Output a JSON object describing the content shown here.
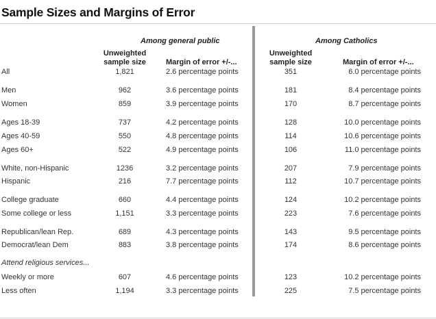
{
  "title": "Sample Sizes and Margins of Error",
  "groups": {
    "general": "Among general public",
    "catholics": "Among Catholics"
  },
  "columns": {
    "sample_size_line1": "Unweighted",
    "sample_size_line2": "sample size",
    "margin": "Margin of error +/-..."
  },
  "section_label": "Attend religious services...",
  "rows": [
    {
      "label": "All",
      "gen_n": "1,821",
      "gen_moe": "2.6 percentage points",
      "cath_n": "351",
      "cath_moe": "6.0 percentage points"
    },
    {
      "label": "Men",
      "gen_n": "962",
      "gen_moe": "3.6 percentage points",
      "cath_n": "181",
      "cath_moe": "8.4 percentage points"
    },
    {
      "label": "Women",
      "gen_n": "859",
      "gen_moe": "3.9 percentage points",
      "cath_n": "170",
      "cath_moe": "8.7 percentage points"
    },
    {
      "label": "Ages 18-39",
      "gen_n": "737",
      "gen_moe": "4.2 percentage points",
      "cath_n": "128",
      "cath_moe": "10.0 percentage points"
    },
    {
      "label": "Ages 40-59",
      "gen_n": "550",
      "gen_moe": "4.8 percentage points",
      "cath_n": "114",
      "cath_moe": "10.6 percentage points"
    },
    {
      "label": "Ages 60+",
      "gen_n": "522",
      "gen_moe": "4.9 percentage points",
      "cath_n": "106",
      "cath_moe": "11.0 percentage points"
    },
    {
      "label": "White, non-Hispanic",
      "gen_n": "1236",
      "gen_moe": "3.2 percentage points",
      "cath_n": "207",
      "cath_moe": "7.9 percentage points"
    },
    {
      "label": "Hispanic",
      "gen_n": "216",
      "gen_moe": "7.7 percentage points",
      "cath_n": "112",
      "cath_moe": "10.7 percentage points"
    },
    {
      "label": "College graduate",
      "gen_n": "660",
      "gen_moe": "4.4 percentage points",
      "cath_n": "124",
      "cath_moe": "10.2 percentage points"
    },
    {
      "label": "Some college or less",
      "gen_n": "1,151",
      "gen_moe": "3.3 percentage points",
      "cath_n": "223",
      "cath_moe": "7.6 percentage points"
    },
    {
      "label": "Republican/lean Rep.",
      "gen_n": "689",
      "gen_moe": "4.3 percentage points",
      "cath_n": "143",
      "cath_moe": "9.5 percentage points"
    },
    {
      "label": "Democrat/lean Dem",
      "gen_n": "883",
      "gen_moe": "3.8 percentage points",
      "cath_n": "174",
      "cath_moe": "8.6 percentage points"
    },
    {
      "label": "Weekly or more",
      "gen_n": "607",
      "gen_moe": "4.6 percentage points",
      "cath_n": "123",
      "cath_moe": "10.2 percentage points"
    },
    {
      "label": "Less often",
      "gen_n": "1,194",
      "gen_moe": "3.3 percentage points",
      "cath_n": "225",
      "cath_moe": "7.5 percentage points"
    }
  ]
}
